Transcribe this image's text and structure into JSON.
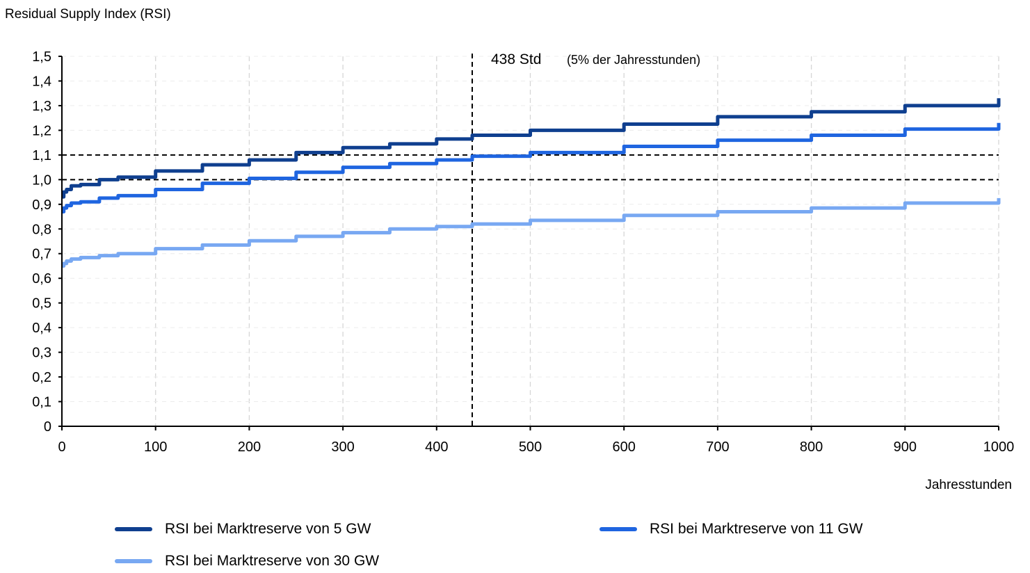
{
  "chart_data": {
    "type": "line",
    "title": "",
    "ylabel": "Residual Supply Index (RSI)",
    "xlabel": "Jahresstunden",
    "xlim": [
      0,
      1000
    ],
    "ylim": [
      0,
      1.5
    ],
    "x_ticks": [
      0,
      100,
      200,
      300,
      400,
      500,
      600,
      700,
      800,
      900,
      1000
    ],
    "x_tick_labels": [
      "0",
      "100",
      "200",
      "300",
      "400",
      "500",
      "600",
      "700",
      "800",
      "900",
      "1000"
    ],
    "y_ticks": [
      0,
      0.1,
      0.2,
      0.3,
      0.4,
      0.5,
      0.6,
      0.7,
      0.8,
      0.9,
      1.0,
      1.1,
      1.2,
      1.3,
      1.4,
      1.5
    ],
    "y_tick_labels": [
      "0",
      "0,1",
      "0,2",
      "0,3",
      "0,4",
      "0,5",
      "0,6",
      "0,7",
      "0,8",
      "0,9",
      "1,0",
      "1,1",
      "1,2",
      "1,3",
      "1,4",
      "1,5"
    ],
    "grid": "vertical dashed",
    "legend_position": "bottom",
    "series": [
      {
        "name": "RSI bei Marktreserve von 5 GW",
        "color": "#0f3f8f",
        "x": [
          0,
          2,
          5,
          10,
          20,
          40,
          60,
          100,
          150,
          200,
          250,
          300,
          350,
          400,
          438,
          500,
          600,
          700,
          800,
          900,
          1000
        ],
        "y": [
          0.93,
          0.95,
          0.96,
          0.975,
          0.98,
          1.0,
          1.01,
          1.035,
          1.06,
          1.08,
          1.11,
          1.13,
          1.145,
          1.165,
          1.18,
          1.2,
          1.225,
          1.255,
          1.275,
          1.3,
          1.33
        ]
      },
      {
        "name": "RSI bei Marktreserve von 11 GW",
        "color": "#1f65e0",
        "x": [
          0,
          2,
          5,
          10,
          20,
          40,
          60,
          100,
          150,
          200,
          250,
          300,
          350,
          400,
          438,
          500,
          600,
          700,
          800,
          900,
          1000
        ],
        "y": [
          0.87,
          0.885,
          0.895,
          0.905,
          0.91,
          0.925,
          0.935,
          0.96,
          0.985,
          1.005,
          1.03,
          1.05,
          1.065,
          1.08,
          1.095,
          1.11,
          1.135,
          1.16,
          1.18,
          1.205,
          1.23
        ]
      },
      {
        "name": "RSI bei Marktreserve von 30 GW",
        "color": "#78a8f2",
        "x": [
          0,
          2,
          5,
          10,
          20,
          40,
          60,
          100,
          150,
          200,
          250,
          300,
          350,
          400,
          438,
          500,
          600,
          700,
          800,
          900,
          1000
        ],
        "y": [
          0.65,
          0.66,
          0.67,
          0.678,
          0.684,
          0.692,
          0.7,
          0.72,
          0.735,
          0.752,
          0.77,
          0.785,
          0.8,
          0.81,
          0.82,
          0.835,
          0.855,
          0.87,
          0.885,
          0.905,
          0.925
        ]
      }
    ],
    "reference_lines": [
      {
        "axis": "x",
        "value": 438,
        "style": "dashed"
      },
      {
        "axis": "y",
        "value": 1.0,
        "style": "dashed"
      },
      {
        "axis": "y",
        "value": 1.1,
        "style": "dashed"
      }
    ],
    "annotations": [
      {
        "text": "438 Std",
        "small": "(5% der Jahresstunden)"
      }
    ]
  }
}
